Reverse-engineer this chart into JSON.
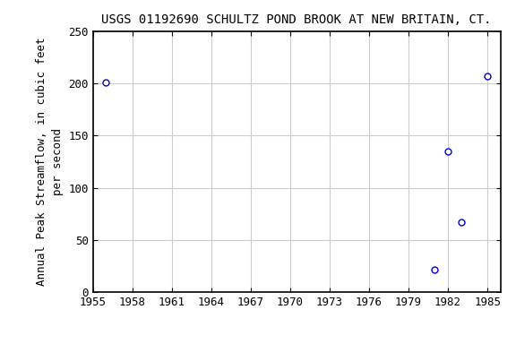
{
  "title": "USGS 01192690 SCHULTZ POND BROOK AT NEW BRITAIN, CT.",
  "ylabel": "Annual Peak Streamflow, in cubic feet\nper second",
  "years": [
    1956,
    1981,
    1982,
    1983,
    1985
  ],
  "values": [
    201,
    22,
    135,
    67,
    207
  ],
  "xlim": [
    1955,
    1986
  ],
  "ylim": [
    0,
    250
  ],
  "xticks": [
    1955,
    1958,
    1961,
    1964,
    1967,
    1970,
    1973,
    1976,
    1979,
    1982,
    1985
  ],
  "yticks": [
    0,
    50,
    100,
    150,
    200,
    250
  ],
  "marker_color": "#0000cc",
  "marker_size": 5,
  "marker_style": "o",
  "marker_facecolor": "white",
  "grid_color": "#cccccc",
  "background_color": "#ffffff",
  "title_fontsize": 10,
  "label_fontsize": 9,
  "tick_fontsize": 9
}
